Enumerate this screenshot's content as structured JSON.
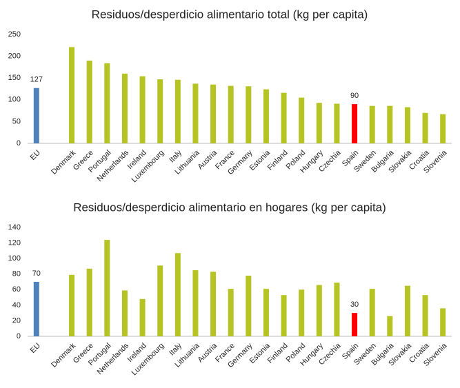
{
  "chart_data": [
    {
      "type": "bar",
      "title": "Residuos/desperdicio alimentario total (kg per capita)",
      "categories": [
        "EU",
        null,
        "Denmark",
        "Greece",
        "Portugal",
        "Netherlands",
        "Ireland",
        "Luxembourg",
        "Italy",
        "Lithuania",
        "Austria",
        "France",
        "Germany",
        "Estonia",
        "Finland",
        "Poland",
        "Hungary",
        "Czechia",
        "Spain",
        "Sweden",
        "Bulgaria",
        "Slovakia",
        "Croatia",
        "Slovenia"
      ],
      "values": [
        127,
        null,
        221,
        190,
        184,
        160,
        154,
        147,
        146,
        137,
        135,
        132,
        131,
        124,
        116,
        105,
        93,
        91,
        90,
        86,
        86,
        83,
        70,
        67
      ],
      "color": "#b5c422",
      "highlight_colors": {
        "0": "#4f81bd",
        "18": "#ff0000"
      },
      "labeled": [
        0,
        18
      ],
      "ylim": [
        0,
        250
      ],
      "yticks": [
        0,
        50,
        100,
        150,
        200,
        250
      ],
      "grid": false
    },
    {
      "type": "bar",
      "title": "Residuos/desperdicio alimentario en hogares (kg per capita)",
      "categories": [
        "EU",
        null,
        "Denmark",
        "Greece",
        "Portugal",
        "Netherlands",
        "Ireland",
        "Luxembourg",
        "Italy",
        "Lithuania",
        "Austria",
        "France",
        "Germany",
        "Estonia",
        "Finland",
        "Poland",
        "Hungary",
        "Czechia",
        "Spain",
        "Sweden",
        "Bulgaria",
        "Slovakia",
        "Croatia",
        "Slovenia"
      ],
      "values": [
        70,
        null,
        79,
        87,
        124,
        59,
        48,
        91,
        107,
        85,
        83,
        61,
        78,
        61,
        53,
        60,
        66,
        69,
        30,
        61,
        26,
        65,
        53,
        36
      ],
      "color": "#b5c422",
      "highlight_colors": {
        "0": "#4f81bd",
        "18": "#ff0000"
      },
      "labeled": [
        0,
        18
      ],
      "ylim": [
        0,
        140
      ],
      "yticks": [
        0,
        20,
        40,
        60,
        80,
        100,
        120,
        140
      ],
      "grid": false
    }
  ]
}
